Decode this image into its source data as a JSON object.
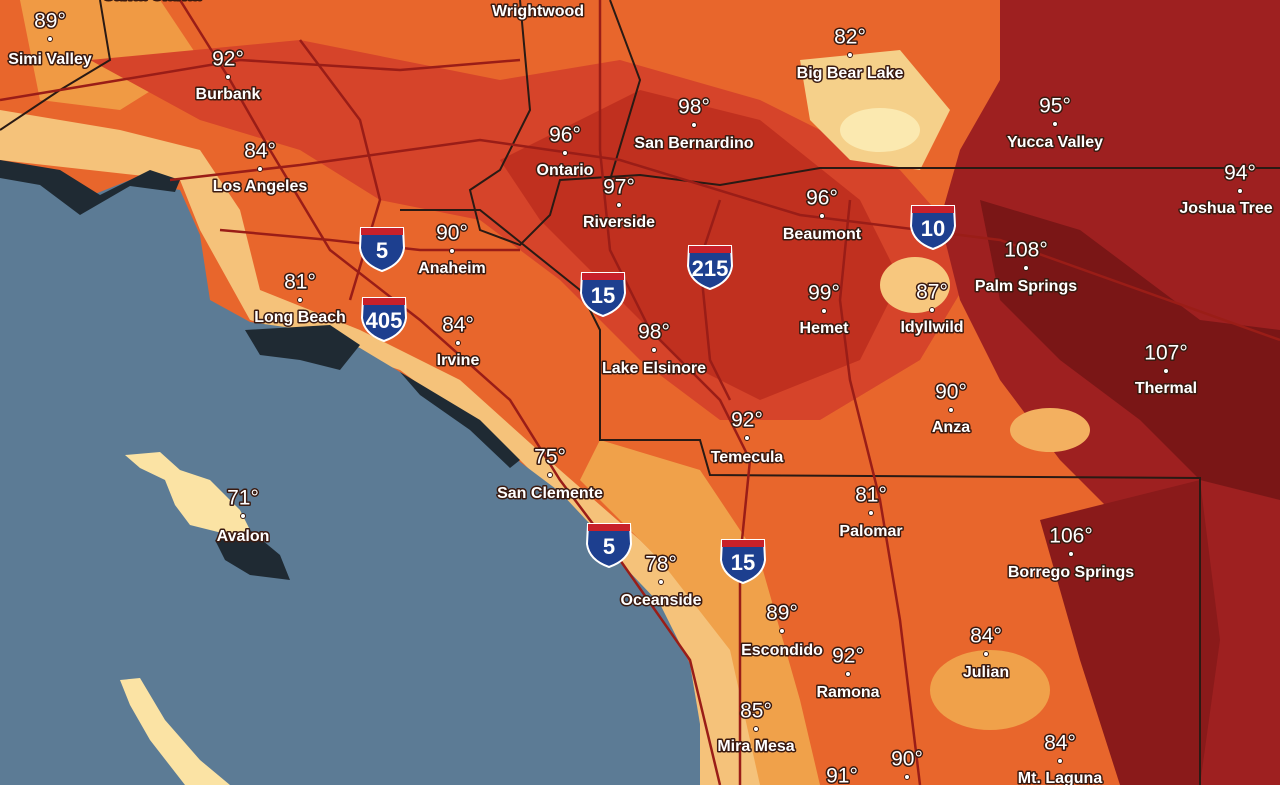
{
  "cities": [
    {
      "name": "Santa Clarita",
      "temp": null
    },
    {
      "name": "Wrightwood",
      "temp": null
    },
    {
      "name": "Simi Valley",
      "temp": "89°"
    },
    {
      "name": "Burbank",
      "temp": "92°"
    },
    {
      "name": "Los Angeles",
      "temp": "84°"
    },
    {
      "name": "Long Beach",
      "temp": "81°"
    },
    {
      "name": "Anaheim",
      "temp": "90°"
    },
    {
      "name": "Irvine",
      "temp": "84°"
    },
    {
      "name": "San Clemente",
      "temp": "75°"
    },
    {
      "name": "Avalon",
      "temp": "71°"
    },
    {
      "name": "Ontario",
      "temp": "96°"
    },
    {
      "name": "San Bernardino",
      "temp": "98°"
    },
    {
      "name": "Riverside",
      "temp": "97°"
    },
    {
      "name": "Big Bear Lake",
      "temp": "82°"
    },
    {
      "name": "Yucca Valley",
      "temp": "95°"
    },
    {
      "name": "Joshua Tree",
      "temp": "94°"
    },
    {
      "name": "Beaumont",
      "temp": "96°"
    },
    {
      "name": "Palm Springs",
      "temp": "108°"
    },
    {
      "name": "Hemet",
      "temp": "99°"
    },
    {
      "name": "Idyllwild",
      "temp": "87°"
    },
    {
      "name": "Lake Elsinore",
      "temp": "98°"
    },
    {
      "name": "Thermal",
      "temp": "107°"
    },
    {
      "name": "Anza",
      "temp": "90°"
    },
    {
      "name": "Temecula",
      "temp": "92°"
    },
    {
      "name": "Palomar",
      "temp": "81°"
    },
    {
      "name": "Borrego Springs",
      "temp": "106°"
    },
    {
      "name": "Oceanside",
      "temp": "78°"
    },
    {
      "name": "Escondido",
      "temp": "89°"
    },
    {
      "name": "Ramona",
      "temp": "92°"
    },
    {
      "name": "Julian",
      "temp": "84°"
    },
    {
      "name": "Mira Mesa",
      "temp": "85°"
    },
    {
      "name": null,
      "temp": "90°"
    },
    {
      "name": null,
      "temp": "91°"
    },
    {
      "name": "Mt. Laguna",
      "temp": "84°"
    }
  ],
  "interstates": [
    "5",
    "405",
    "15",
    "215",
    "10",
    "5",
    "15"
  ]
}
